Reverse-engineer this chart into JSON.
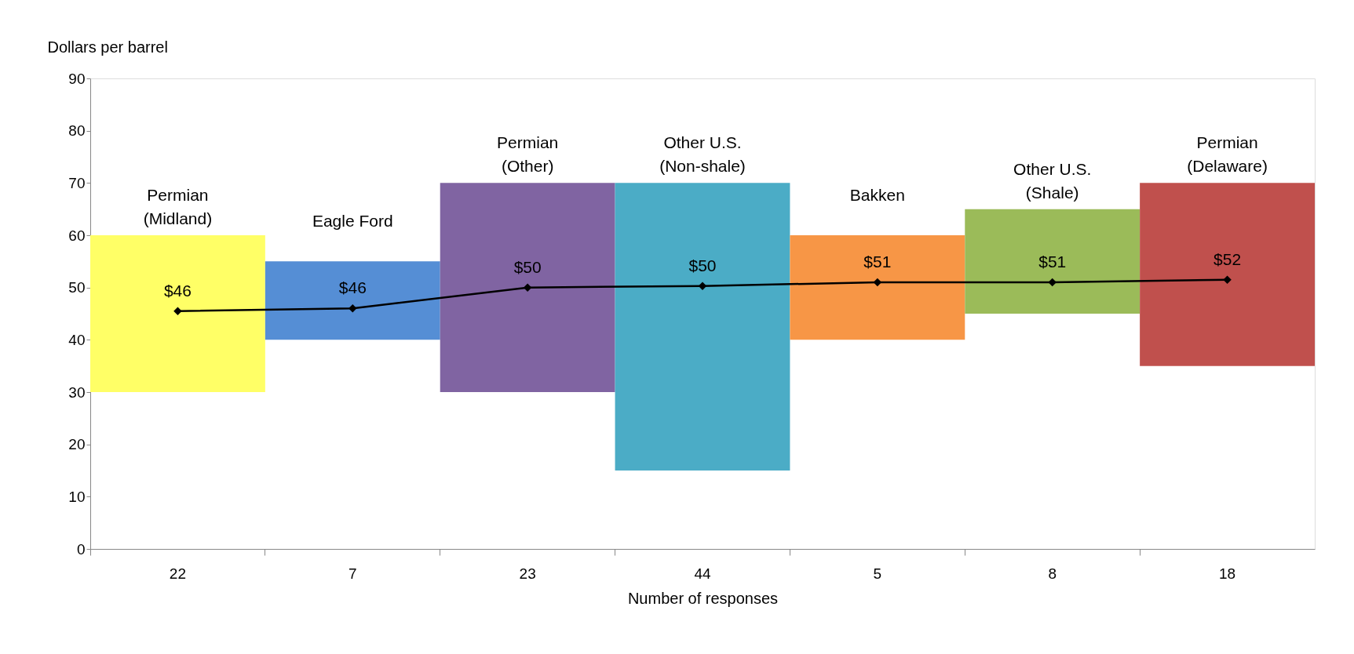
{
  "chart_data": {
    "type": "bar",
    "xlabel": "Number of responses",
    "ylabel": "Dollars per barrel",
    "categories": [
      "22",
      "7",
      "23",
      "44",
      "5",
      "8",
      "18"
    ],
    "ylim": [
      0,
      90
    ],
    "yticks": [
      0,
      10,
      20,
      30,
      40,
      50,
      60,
      70,
      80,
      90
    ],
    "grid": false,
    "series": [
      {
        "base": [
          30,
          40,
          30,
          15,
          40,
          45,
          35
        ],
        "values": [
          30,
          15,
          40,
          55,
          20,
          20,
          35
        ],
        "colors": [
          "#ffff66",
          "#558ed5",
          "#8064a2",
          "#4bacc6",
          "#f79646",
          "#9bbb59",
          "#c0504d"
        ]
      },
      {
        "type": "line",
        "color": "#000000",
        "marker": "diamond",
        "line_style": "solid",
        "values": [
          45.5,
          46,
          50,
          50.3,
          51,
          51,
          51.5
        ],
        "value_labels": [
          "$46",
          "$46",
          "$50",
          "$50",
          "$51",
          "$51",
          "$52"
        ]
      }
    ],
    "annotations": [
      {
        "text": "Permian\n(Midland)",
        "x": "22",
        "y": 60
      },
      {
        "text": "Eagle Ford",
        "x": "7",
        "y": 55
      },
      {
        "text": "Permian\n(Other)",
        "x": "23",
        "y": 70
      },
      {
        "text": "Other U.S.\n(Non-shale)",
        "x": "44",
        "y": 70
      },
      {
        "text": "Bakken",
        "x": "5",
        "y": 60
      },
      {
        "text": "Other U.S.\n(Shale)",
        "x": "8",
        "y": 65
      },
      {
        "text": "Permian\n(Delaware)",
        "x": "18",
        "y": 70
      }
    ]
  }
}
